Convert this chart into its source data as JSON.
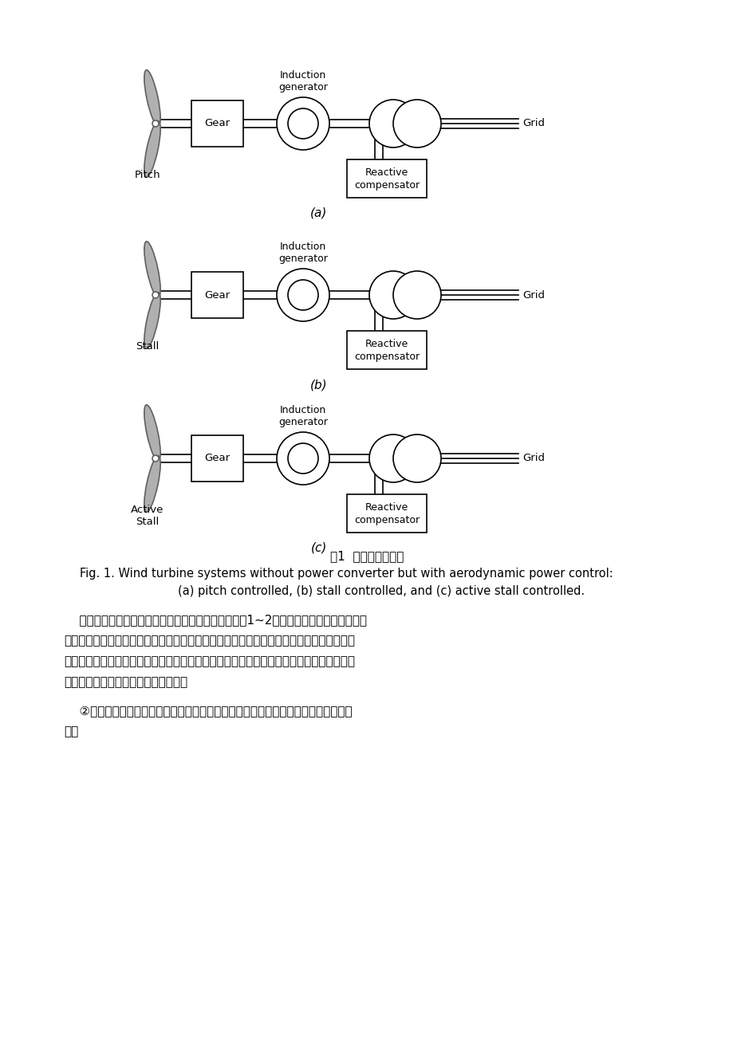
{
  "bg_color": "#ffffff",
  "fig_caption_cn": "图1  无功率变换装置",
  "fig_caption_en_line1": "Fig. 1. Wind turbine systems without power converter but with aerodynamic power control:",
  "fig_caption_en_line2": "        (a) pitch controlled, (b) stall controlled, and (c) active stall controlled.",
  "para1_lines": [
    "    感应电动机不随转矩而改变，几乎保持固定的速度在1~2的范围变化。功率是以失速，",
    "主动失速和叶片倾角控制限制的，通常使用一个软启动装置，为的消除启动时的启动电流。",
    "这种情况下需要一个无功补偿器消除风力发电机所需的无功，通常由电容虚波实现。这种结",
    "构由于低成本和高可靠性很有吸引力。"
  ],
  "para2_lines": [
    "    ②非全功率的电力电子风力发电系统，能得到比上面更高的性能，下图是这种结构的",
    "配置"
  ],
  "diagrams": [
    {
      "label_left": "Pitch",
      "sub": "(a)"
    },
    {
      "label_left": "Stall",
      "sub": "(b)"
    },
    {
      "label_left": "Active\nStall",
      "sub": "(c)"
    }
  ],
  "lw": 1.2,
  "blade_color": "#b0b0b0",
  "blade_edge_color": "#606060"
}
